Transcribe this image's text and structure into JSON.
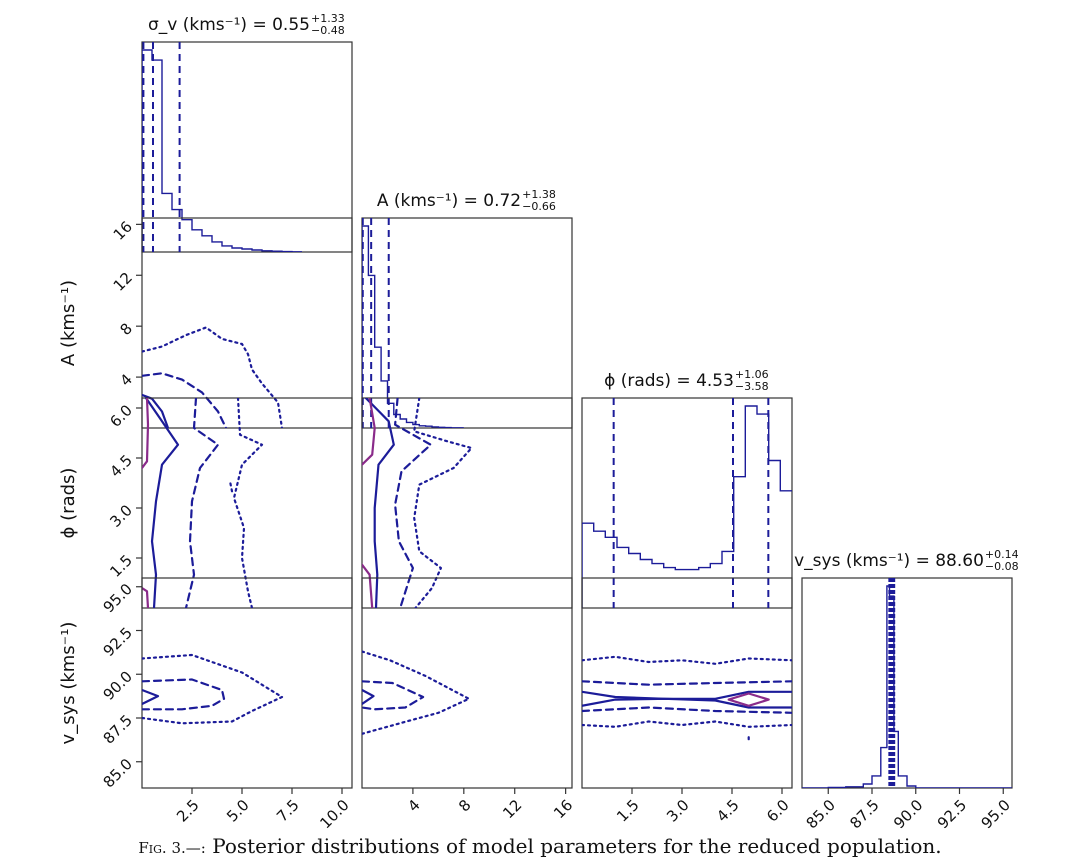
{
  "caption": {
    "label": "Fig. 3.—:",
    "text": "Posterior distributions of model parameters for the reduced population."
  },
  "chart_data": {
    "type": "corner",
    "colors": {
      "frame": "#333333",
      "line": "#1c1c99",
      "inner_contour": "#8a2b8a"
    },
    "parameters": [
      {
        "key": "sigma_v",
        "label": "σ_v (kms⁻¹)",
        "range": [
          0,
          10.5
        ],
        "ticks": [
          2.5,
          5.0,
          7.5,
          10.0
        ],
        "title": "σ_v (kms⁻¹) = 0.55",
        "sup": "+1.33",
        "sub": "−0.48",
        "quantiles": [
          0.07,
          0.55,
          1.88
        ]
      },
      {
        "key": "A",
        "label": "A (kms⁻¹)",
        "range": [
          0,
          16.5
        ],
        "ticks": [
          4,
          8,
          12,
          16
        ],
        "title": "A (kms⁻¹) = 0.72",
        "sup": "+1.38",
        "sub": "−0.66",
        "quantiles": [
          0.06,
          0.72,
          2.1
        ]
      },
      {
        "key": "phi",
        "label": "ϕ (rads)",
        "range": [
          0,
          6.3
        ],
        "ticks": [
          1.5,
          3.0,
          4.5,
          6.0
        ],
        "title": "ϕ (rads) = 4.53",
        "sup": "+1.06",
        "sub": "−3.58",
        "quantiles": [
          0.95,
          4.53,
          5.59
        ]
      },
      {
        "key": "v_sys",
        "label": "v_sys (kms⁻¹)",
        "range": [
          83.5,
          95.5
        ],
        "ticks": [
          85.0,
          87.5,
          90.0,
          92.5,
          95.0
        ],
        "title": "v_sys (kms⁻¹) = 88.60",
        "sup": "+0.14",
        "sub": "−0.08",
        "quantiles": [
          88.52,
          88.6,
          88.74
        ]
      }
    ],
    "histograms": {
      "sigma_v": {
        "edges": [
          0,
          0.5,
          1.0,
          1.5,
          2.0,
          2.5,
          3.0,
          3.5,
          4.0,
          4.5,
          5.0,
          5.5,
          6.0,
          6.5,
          7.0,
          7.5,
          8.0
        ],
        "counts": [
          1.0,
          0.95,
          0.29,
          0.21,
          0.16,
          0.11,
          0.08,
          0.05,
          0.03,
          0.02,
          0.015,
          0.01,
          0.006,
          0.004,
          0.002,
          0.001
        ]
      },
      "A": {
        "edges": [
          0,
          0.5,
          1.0,
          1.5,
          2.0,
          2.5,
          3.0,
          3.5,
          4.0,
          4.5,
          5.0,
          5.5,
          6.0,
          6.5,
          7.0,
          7.5,
          8.0
        ],
        "counts": [
          0.9,
          0.68,
          0.36,
          0.21,
          0.11,
          0.06,
          0.04,
          0.025,
          0.015,
          0.01,
          0.008,
          0.005,
          0.003,
          0.002,
          0.001,
          0.001
        ]
      },
      "phi": {
        "edges": [
          0,
          0.35,
          0.7,
          1.05,
          1.4,
          1.75,
          2.1,
          2.45,
          2.8,
          3.15,
          3.5,
          3.85,
          4.2,
          4.55,
          4.9,
          5.25,
          5.6,
          5.95,
          6.3
        ],
        "counts": [
          0.42,
          0.38,
          0.35,
          0.3,
          0.27,
          0.24,
          0.22,
          0.2,
          0.19,
          0.19,
          0.2,
          0.22,
          0.28,
          0.65,
          1.0,
          0.96,
          0.73,
          0.58
        ]
      },
      "v_sys": {
        "edges": [
          83.5,
          85.0,
          86.0,
          87.0,
          87.5,
          88.0,
          88.35,
          88.5,
          88.75,
          89.0,
          89.5,
          90.0,
          95.5
        ],
        "counts": [
          0,
          0.003,
          0.006,
          0.02,
          0.06,
          0.2,
          1.0,
          0.95,
          0.28,
          0.06,
          0.01,
          0
        ]
      }
    },
    "contours": {
      "A|sigma_v": {
        "levels": {
          "solid": [
            [
              0,
              2.6
            ],
            [
              0.5,
              2.3
            ],
            [
              1.0,
              1.3
            ],
            [
              1.3,
              0
            ]
          ],
          "dashed": [
            [
              0,
              4.1
            ],
            [
              1.0,
              4.3
            ],
            [
              2.0,
              3.8
            ],
            [
              3.0,
              2.8
            ],
            [
              3.8,
              1.3
            ],
            [
              4.2,
              0
            ]
          ],
          "dotted": [
            [
              0,
              6.0
            ],
            [
              1.0,
              6.4
            ],
            [
              2.2,
              7.3
            ],
            [
              3.2,
              7.9
            ],
            [
              4.0,
              7.0
            ],
            [
              5.0,
              6.6
            ],
            [
              5.3,
              5.8
            ],
            [
              5.5,
              4.6
            ],
            [
              6.0,
              3.5
            ],
            [
              6.8,
              2.0
            ],
            [
              7.0,
              0
            ]
          ]
        }
      },
      "phi|sigma_v": {
        "levels": {
          "inner": [
            [
              [
                0.25,
                6.3
              ],
              [
                0.3,
                5.5
              ],
              [
                0.25,
                4.4
              ],
              [
                0,
                4.2
              ]
            ],
            [
              [
                0,
                0.6
              ],
              [
                0.25,
                0.5
              ],
              [
                0.3,
                0.0
              ]
            ]
          ],
          "solid": [
            [
              [
                0.2,
                6.3
              ],
              [
                1.0,
                5.6
              ],
              [
                1.8,
                4.9
              ],
              [
                1.0,
                4.3
              ],
              [
                0.7,
                3.2
              ],
              [
                0.5,
                2.0
              ],
              [
                0.7,
                1.0
              ],
              [
                0.6,
                0.0
              ]
            ]
          ],
          "dashed": [
            [
              [
                2.7,
                6.3
              ],
              [
                2.6,
                5.4
              ],
              [
                3.8,
                4.9
              ],
              [
                2.9,
                4.2
              ],
              [
                2.5,
                3.2
              ],
              [
                2.4,
                2.0
              ],
              [
                2.6,
                1.0
              ],
              [
                2.2,
                0.0
              ]
            ]
          ],
          "dotted": [
            [
              [
                4.8,
                6.3
              ],
              [
                4.9,
                5.2
              ],
              [
                6.0,
                4.9
              ],
              [
                5.0,
                4.3
              ],
              [
                4.6,
                3.3
              ],
              [
                5.1,
                2.4
              ],
              [
                5.0,
                1.5
              ],
              [
                5.3,
                0.5
              ],
              [
                5.5,
                0.0
              ]
            ],
            [
              [
                4.5,
                3.5
              ],
              [
                4.4,
                3.8
              ]
            ]
          ]
        }
      },
      "phi|A": {
        "levels": {
          "inner": [
            [
              [
                0.6,
                6.3
              ],
              [
                1.0,
                5.4
              ],
              [
                0.8,
                4.6
              ],
              [
                0,
                4.3
              ]
            ],
            [
              [
                0,
                1.3
              ],
              [
                0.6,
                1.0
              ],
              [
                0.8,
                0.0
              ]
            ]
          ],
          "solid": [
            [
              [
                0.3,
                6.3
              ],
              [
                2.1,
                5.6
              ],
              [
                2.5,
                4.9
              ],
              [
                1.3,
                4.3
              ],
              [
                1.0,
                3.0
              ],
              [
                1.0,
                2.0
              ],
              [
                1.2,
                1.0
              ],
              [
                1.1,
                0.0
              ]
            ]
          ],
          "dashed": [
            [
              [
                2.8,
                6.3
              ],
              [
                2.6,
                5.5
              ],
              [
                5.4,
                4.9
              ],
              [
                3.1,
                4.1
              ],
              [
                2.6,
                3.1
              ],
              [
                2.9,
                2.0
              ],
              [
                4.0,
                1.2
              ],
              [
                3.0,
                0.0
              ]
            ]
          ],
          "dotted": [
            [
              [
                4.5,
                6.3
              ],
              [
                4.1,
                5.3
              ],
              [
                6.7,
                5.0
              ],
              [
                8.6,
                4.8
              ],
              [
                7.2,
                4.2
              ],
              [
                4.5,
                3.7
              ],
              [
                4.1,
                2.7
              ],
              [
                4.5,
                1.7
              ],
              [
                6.2,
                1.2
              ],
              [
                5.5,
                0.6
              ],
              [
                4.2,
                0.0
              ]
            ]
          ]
        }
      },
      "v_sys|sigma_v": {
        "levels": {
          "solid": [
            [
              [
                0,
                89.1
              ],
              [
                0.8,
                88.75
              ],
              [
                0,
                88.3
              ]
            ]
          ],
          "dashed": [
            [
              [
                0,
                89.6
              ],
              [
                2.5,
                89.7
              ],
              [
                4.0,
                89.1
              ],
              [
                4.1,
                88.6
              ],
              [
                3.5,
                88.2
              ],
              [
                2.0,
                88.0
              ],
              [
                0,
                88.0
              ]
            ]
          ],
          "dotted": [
            [
              [
                0,
                90.9
              ],
              [
                2.5,
                91.1
              ],
              [
                5.0,
                90.1
              ],
              [
                7.0,
                88.7
              ],
              [
                5.5,
                87.9
              ],
              [
                4.5,
                87.3
              ],
              [
                2.0,
                87.2
              ],
              [
                0,
                87.5
              ]
            ]
          ]
        }
      },
      "v_sys|A": {
        "levels": {
          "solid": [
            [
              [
                0,
                89.1
              ],
              [
                0.9,
                88.75
              ],
              [
                0,
                88.3
              ]
            ]
          ],
          "dashed": [
            [
              [
                0,
                89.6
              ],
              [
                2.4,
                89.5
              ],
              [
                4.8,
                88.7
              ],
              [
                3.4,
                88.1
              ],
              [
                1.0,
                88.0
              ],
              [
                0,
                88.1
              ]
            ]
          ],
          "dotted": [
            [
              [
                0,
                91.3
              ],
              [
                2.2,
                90.8
              ],
              [
                5.0,
                89.9
              ],
              [
                8.4,
                88.6
              ],
              [
                6.0,
                87.8
              ],
              [
                4.0,
                87.4
              ],
              [
                1.5,
                86.9
              ],
              [
                0,
                86.6
              ]
            ]
          ]
        }
      },
      "v_sys|phi": {
        "levels": {
          "solid": [
            [
              [
                0,
                89.0
              ],
              [
                1.0,
                88.7
              ],
              [
                2.5,
                88.6
              ],
              [
                4.0,
                88.6
              ],
              [
                5.0,
                89.0
              ],
              [
                6.3,
                89.0
              ]
            ],
            [
              [
                0,
                88.2
              ],
              [
                1.0,
                88.55
              ],
              [
                2.5,
                88.6
              ],
              [
                4.0,
                88.5
              ],
              [
                5.0,
                88.1
              ],
              [
                6.3,
                88.1
              ]
            ]
          ],
          "inner": [
            [
              [
                4.4,
                88.55
              ],
              [
                5.0,
                88.9
              ],
              [
                5.6,
                88.55
              ],
              [
                5.0,
                88.2
              ],
              [
                4.4,
                88.55
              ]
            ]
          ],
          "dashed": [
            [
              [
                0,
                89.6
              ],
              [
                2.0,
                89.4
              ],
              [
                4.0,
                89.5
              ],
              [
                6.3,
                89.6
              ]
            ],
            [
              [
                0,
                87.9
              ],
              [
                2.0,
                88.1
              ],
              [
                4.0,
                87.9
              ],
              [
                6.3,
                87.8
              ]
            ]
          ],
          "dotted": [
            [
              [
                0,
                90.8
              ],
              [
                1.0,
                91.0
              ],
              [
                2.0,
                90.7
              ],
              [
                3.0,
                90.8
              ],
              [
                4.0,
                90.6
              ],
              [
                5.0,
                90.9
              ],
              [
                6.3,
                90.8
              ]
            ],
            [
              [
                0,
                87.1
              ],
              [
                1.0,
                87.0
              ],
              [
                2.0,
                87.3
              ],
              [
                3.0,
                87.1
              ],
              [
                4.0,
                87.3
              ],
              [
                5.0,
                87.0
              ],
              [
                6.3,
                87.1
              ]
            ],
            [
              [
                5.0,
                86.4
              ],
              [
                5.0,
                86.1
              ]
            ]
          ]
        }
      }
    }
  }
}
